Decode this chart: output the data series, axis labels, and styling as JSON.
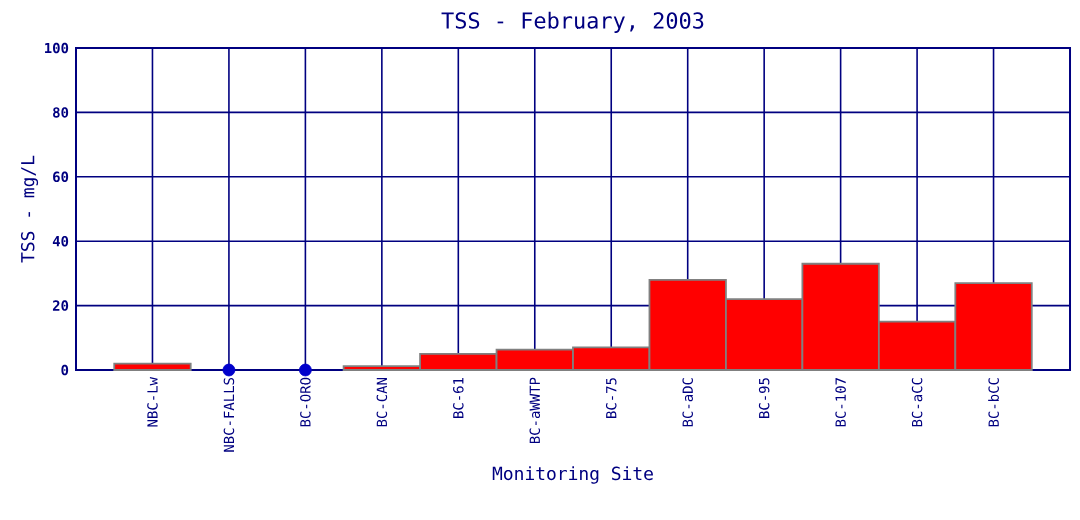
{
  "chart_data": {
    "type": "bar",
    "title": "TSS - February, 2003",
    "xlabel": "Monitoring Site",
    "ylabel": "TSS - mg/L",
    "categories": [
      "NBC-Lw",
      "NBC-FALLS",
      "BC-ORO",
      "BC-CAN",
      "BC-61",
      "BC-aWWTP",
      "BC-75",
      "BC-aDC",
      "BC-95",
      "BC-107",
      "BC-aCC",
      "BC-bCC"
    ],
    "series": [
      {
        "color": "#ff0000",
        "values": [
          2,
          null,
          null,
          1.2,
          5,
          6.3,
          7,
          28,
          22,
          33,
          15,
          27
        ]
      },
      {
        "type": "scatter",
        "color": "#0000cc",
        "marker": "circle",
        "values": [
          null,
          0,
          0,
          null,
          null,
          null,
          null,
          null,
          null,
          null,
          null,
          null
        ]
      }
    ],
    "ylim": [
      0,
      100
    ],
    "yticks": [
      0,
      20,
      40,
      60,
      80,
      100
    ],
    "grid": true
  }
}
